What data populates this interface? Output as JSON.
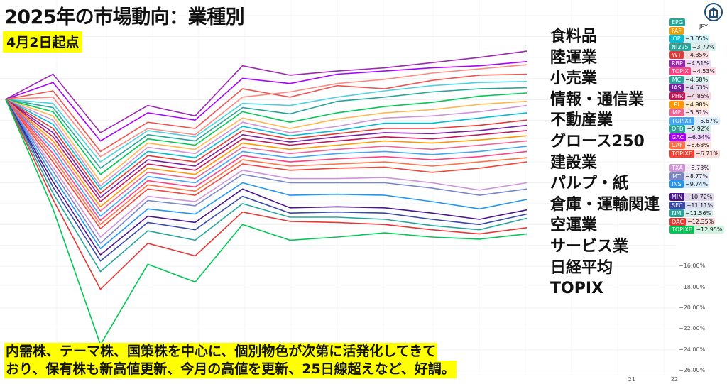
{
  "title": "2025年の市場動向：業種別",
  "subtitle": "4月2日起点",
  "sector_list": [
    "食料品",
    "陸運業",
    "小売業",
    "情報・通信業",
    "不動産業",
    "グロース250",
    "建設業",
    "パルプ・紙",
    "倉庫・運輸関連",
    "空運業",
    "サービス業",
    "日経平均",
    "TOPIX"
  ],
  "caption_lines": [
    "内需株、テーマ株、国策株を中心に、個別物色が次第に活発化してきて",
    "おり、保有株も新高値更新、今月の高値を更新、25日線超えなど、好調。"
  ],
  "currency": "JPY",
  "logo_icon": "bank-building-icon",
  "legend": [
    {
      "code": "EPG",
      "value": "",
      "color": "#26a69a"
    },
    {
      "code": "FAF",
      "value": "",
      "color": "#ff9800"
    },
    {
      "code": "OP",
      "value": "−3.05%",
      "color": "#00bcd4"
    },
    {
      "code": "NI225",
      "value": "−3.77%",
      "color": "#26a69a"
    },
    {
      "code": "WT",
      "value": "−4.35%",
      "color": "#e53935"
    },
    {
      "code": "RBP",
      "value": "−4.51%",
      "color": "#9c27b0"
    },
    {
      "code": "TOPIX",
      "value": "−4.53%",
      "color": "#ff4081"
    },
    {
      "code": "MC",
      "value": "−4.58%",
      "color": "#26a69a"
    },
    {
      "code": "IAS",
      "value": "−4.63%",
      "color": "#7b1fa2"
    },
    {
      "code": "PHR",
      "value": "−4.85%",
      "color": "#c2185b"
    },
    {
      "code": "PI",
      "value": "−4.98%",
      "color": "#ff9800"
    },
    {
      "code": "MP",
      "value": "−5.61%",
      "color": "#f06292"
    },
    {
      "code": "TOPIXT",
      "value": "−5.67%",
      "color": "#42a5f5"
    },
    {
      "code": "OFB",
      "value": "−5.92%",
      "color": "#26a69a"
    },
    {
      "code": "GAC",
      "value": "−6.34%",
      "color": "#aa00ff"
    },
    {
      "code": "CAF",
      "value": "−6.68%",
      "color": "#ff7043"
    },
    {
      "code": "TOPIXE",
      "value": "−6.71%",
      "color": "#f44336"
    },
    {
      "code": "TXA",
      "value": "−8.73%",
      "color": "#ce93d8"
    },
    {
      "code": "MT",
      "value": "−8.77%",
      "color": "#7986cb"
    },
    {
      "code": "INS",
      "value": "−9.74%",
      "color": "#2196f3"
    },
    {
      "code": "MIN",
      "value": "−10.72%",
      "color": "#4a148c"
    },
    {
      "code": "SEC",
      "value": "−11.11%",
      "color": "#3949ab"
    },
    {
      "code": "NM",
      "value": "−11.56%",
      "color": "#26a69a"
    },
    {
      "code": "OAC",
      "value": "−12.35%",
      "color": "#e53935"
    },
    {
      "code": "TOPIXB",
      "value": "−12.95%",
      "color": "#00c853"
    }
  ],
  "chart_data": {
    "type": "line",
    "x": [
      0,
      1,
      2,
      3,
      4,
      5,
      6,
      7,
      8,
      9,
      10,
      11
    ],
    "xtick_labels": [
      {
        "x": 13.2,
        "label": "21"
      },
      {
        "x": 14.1,
        "label": "22"
      }
    ],
    "ylabel": "",
    "yticks": [
      "−16.00%",
      "−18.00%",
      "−20.00%",
      "−22.00%",
      "−24.00%",
      "−26.00%"
    ],
    "ytick_values": [
      -16,
      -18,
      -20,
      -22,
      -24,
      -26
    ],
    "ylim": [
      -27.2,
      9.5
    ],
    "grid": true,
    "series": [
      {
        "color": "#9c27b0",
        "values": [
          0,
          2.4,
          -3.2,
          -0.6,
          -1.6,
          3.2,
          2.3,
          2.7,
          3.0,
          3.5,
          4.0,
          4.6
        ]
      },
      {
        "color": "#aa00ff",
        "values": [
          0,
          1.6,
          -4.0,
          -1.3,
          -2.0,
          2.0,
          1.5,
          2.4,
          2.7,
          3.0,
          3.2,
          3.6
        ]
      },
      {
        "color": "#ef5350",
        "values": [
          0,
          0.8,
          -5.0,
          -2.2,
          -2.8,
          1.0,
          0.2,
          1.3,
          1.0,
          1.8,
          2.3,
          2.4
        ]
      },
      {
        "color": "#ff8a80",
        "values": [
          0,
          0.2,
          -5.5,
          -2.8,
          -3.4,
          0.2,
          0.7,
          1.5,
          1.9,
          2.5,
          2.9,
          3.3
        ]
      },
      {
        "color": "#4dd0e1",
        "values": [
          0,
          -0.4,
          -6.0,
          -3.0,
          -3.6,
          -0.4,
          -0.6,
          0.2,
          0.8,
          1.3,
          1.6,
          1.7
        ]
      },
      {
        "color": "#26a69a",
        "values": [
          0,
          -0.8,
          -6.6,
          -3.4,
          -4.0,
          -0.8,
          -1.4,
          -0.2,
          0.2,
          0.7,
          1.0,
          1.1
        ]
      },
      {
        "color": "#00c853",
        "values": [
          0,
          -1.2,
          -7.2,
          -3.8,
          -4.4,
          -1.2,
          -2.2,
          -1.3,
          -0.7,
          -0.3,
          0.3,
          0.6
        ]
      },
      {
        "color": "#ffb74d",
        "values": [
          0,
          -1.6,
          -7.9,
          -4.2,
          -4.8,
          -1.8,
          -2.8,
          -1.9,
          -1.3,
          -1.0,
          -0.5,
          -0.2
        ]
      },
      {
        "color": "#ce93d8",
        "values": [
          0,
          -2.0,
          -8.3,
          -4.6,
          -5.2,
          -2.2,
          -3.2,
          -2.6,
          -1.8,
          -1.6,
          -1.2,
          -0.6
        ]
      },
      {
        "color": "#00bcd4",
        "values": [
          0,
          -2.4,
          -8.6,
          -5.0,
          -5.6,
          -2.6,
          -3.5,
          -3.0,
          -2.3,
          -2.3,
          -1.8,
          -1.3
        ]
      },
      {
        "color": "#e53935",
        "values": [
          0,
          -2.8,
          -9.0,
          -5.4,
          -6.0,
          -3.0,
          -3.8,
          -3.3,
          -2.8,
          -2.8,
          -2.5,
          -2.0
        ]
      },
      {
        "color": "#7b1fa2",
        "values": [
          0,
          -3.2,
          -9.4,
          -5.8,
          -6.4,
          -3.4,
          -4.1,
          -3.6,
          -3.2,
          -3.3,
          -3.0,
          -2.5
        ]
      },
      {
        "color": "#c2185b",
        "values": [
          0,
          -3.6,
          -9.8,
          -6.2,
          -6.8,
          -3.8,
          -4.4,
          -4.0,
          -3.6,
          -3.8,
          -3.4,
          -3.0
        ]
      },
      {
        "color": "#ff9800",
        "values": [
          0,
          -4.0,
          -10.3,
          -6.6,
          -7.2,
          -4.2,
          -4.8,
          -4.4,
          -4.0,
          -4.2,
          -3.9,
          -3.5
        ]
      },
      {
        "color": "#f06292",
        "values": [
          0,
          -4.4,
          -10.7,
          -7.0,
          -7.6,
          -4.6,
          -5.2,
          -4.8,
          -4.5,
          -4.8,
          -4.4,
          -4.0
        ]
      },
      {
        "color": "#42a5f5",
        "values": [
          0,
          -4.8,
          -11.2,
          -7.4,
          -8.0,
          -5.0,
          -5.6,
          -5.2,
          -5.0,
          -5.3,
          -5.0,
          -4.5
        ]
      },
      {
        "color": "#ff4081",
        "values": [
          0,
          -5.2,
          -11.6,
          -7.8,
          -8.4,
          -5.4,
          -6.0,
          -5.7,
          -5.5,
          -5.8,
          -5.5,
          -5.0
        ]
      },
      {
        "color": "#ff7043",
        "values": [
          0,
          -5.6,
          -12.0,
          -8.2,
          -8.8,
          -5.8,
          -6.4,
          -6.2,
          -6.0,
          -6.4,
          -6.0,
          -5.6
        ]
      },
      {
        "color": "#f44336",
        "values": [
          0,
          -6.0,
          -12.4,
          -8.6,
          -9.2,
          -6.2,
          -6.8,
          -6.6,
          -6.5,
          -7.0,
          -6.6,
          -6.0
        ]
      },
      {
        "color": "#ce93d8",
        "values": [
          0,
          -6.5,
          -13.2,
          -9.3,
          -9.8,
          -6.8,
          -7.6,
          -7.6,
          -7.5,
          -8.0,
          -8.7,
          -8.0
        ]
      },
      {
        "color": "#7986cb",
        "values": [
          0,
          -6.9,
          -13.8,
          -9.7,
          -10.2,
          -7.2,
          -8.0,
          -8.0,
          -8.0,
          -8.5,
          -9.2,
          -8.6
        ]
      },
      {
        "color": "#2196f3",
        "values": [
          0,
          -7.4,
          -14.3,
          -10.5,
          -11.0,
          -8.0,
          -9.2,
          -9.1,
          -9.2,
          -9.8,
          -10.5,
          -9.6
        ]
      },
      {
        "color": "#4a148c",
        "values": [
          0,
          -7.9,
          -14.9,
          -11.2,
          -11.8,
          -8.6,
          -10.4,
          -10.3,
          -10.4,
          -10.9,
          -11.5,
          -10.6
        ]
      },
      {
        "color": "#3949ab",
        "values": [
          0,
          -8.4,
          -15.5,
          -11.8,
          -12.5,
          -9.3,
          -10.9,
          -10.8,
          -10.9,
          -11.5,
          -12.0,
          -11.0
        ]
      },
      {
        "color": "#26a69a",
        "values": [
          0,
          -9.0,
          -16.5,
          -12.6,
          -13.5,
          -10.0,
          -11.3,
          -11.3,
          -11.5,
          -12.1,
          -12.5,
          -11.4
        ]
      },
      {
        "color": "#e53935",
        "values": [
          0,
          -9.6,
          -18.2,
          -13.8,
          -15.0,
          -10.8,
          -11.7,
          -11.8,
          -12.0,
          -12.5,
          -12.9,
          -12.3
        ]
      },
      {
        "color": "#00c853",
        "values": [
          0,
          -10.5,
          -23.5,
          -15.8,
          -17.5,
          -12.0,
          -13.5,
          -13.2,
          -12.8,
          -13.2,
          -13.4,
          -12.9
        ]
      }
    ]
  }
}
